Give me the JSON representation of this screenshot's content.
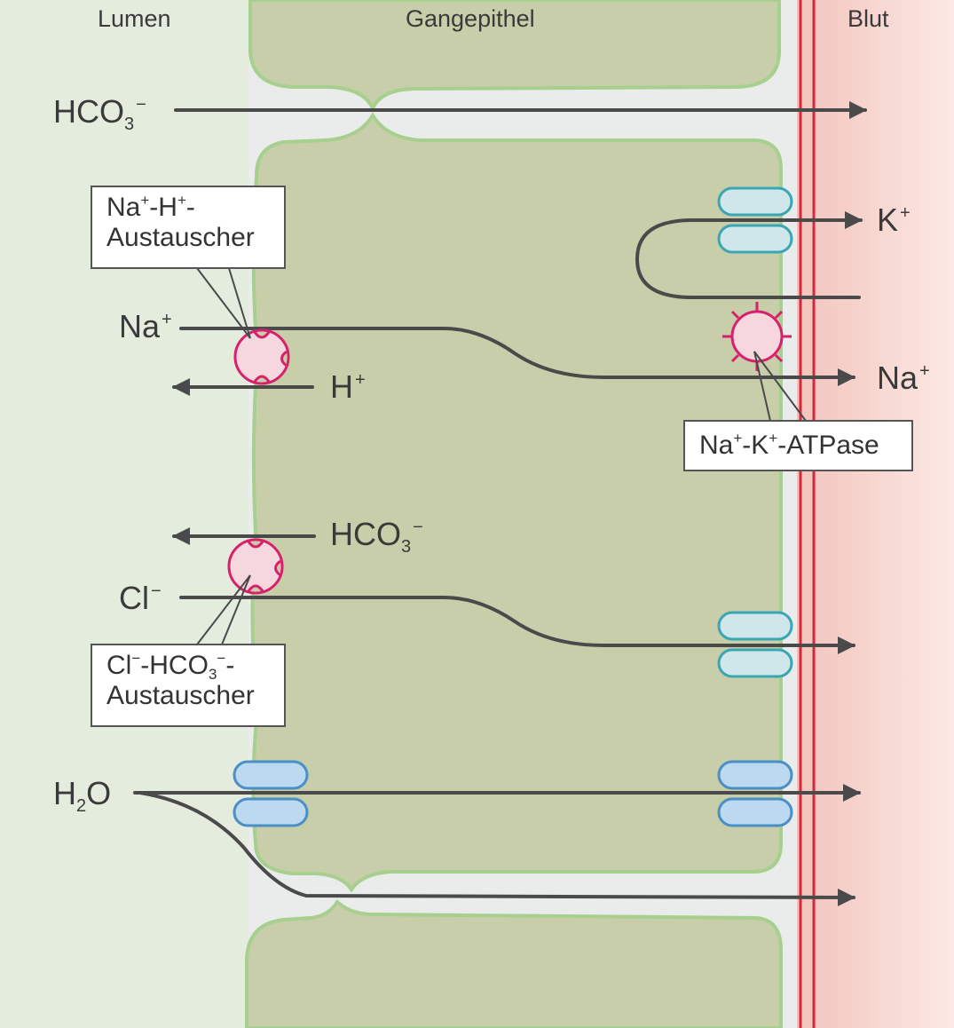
{
  "regions": {
    "lumen": "Lumen",
    "epithelium": "Gangepithel",
    "blood": "Blut"
  },
  "ions": {
    "hco3_top": {
      "base": "HCO",
      "sub": "3",
      "sup": "−"
    },
    "k": {
      "base": "K",
      "sup": "+"
    },
    "na_in": {
      "base": "Na",
      "sup": "+"
    },
    "h": {
      "base": "H",
      "sup": "+"
    },
    "na_out": {
      "base": "Na",
      "sup": "+"
    },
    "hco3_mid": {
      "base": "HCO",
      "sub": "3",
      "sup": "−"
    },
    "cl": {
      "base": "Cl",
      "sup": "−"
    },
    "h2o": {
      "base": "H",
      "sub": "2",
      "tail": "O"
    }
  },
  "transporters": {
    "nah": {
      "line1_a": "Na",
      "sup1": "+",
      "line1_b": "-H",
      "sup2": "+",
      "line1_c": "-",
      "line2": "Austauscher"
    },
    "atpase": {
      "a": "Na",
      "sup1": "+",
      "b": "-K",
      "sup2": "+",
      "c": "-ATPase"
    },
    "clhco3": {
      "a": "Cl",
      "sup1": "−",
      "b": "-HCO",
      "sub": "3",
      "sup2": "−",
      "c": "-",
      "line2": "Austauscher"
    }
  },
  "colors": {
    "lumen_bg": "#e4ecde",
    "gap_bg": "#e9ecea",
    "cell_fill": "#c9ceaa",
    "cell_border": "#a7cf8e",
    "blood_inner": "#f2c4bc",
    "blood_outer": "#fce8e4",
    "membrane_red": "#d8263d",
    "arrow": "#4a4a4a",
    "exchanger": "#d5226b",
    "exchanger_fill": "#f5d7dd",
    "k_channel_stroke": "#3aa6b3",
    "k_channel_fill": "#cfe7ea",
    "aquaporin_stroke": "#4a8fc6",
    "aquaporin_fill": "#bcd9f0"
  }
}
